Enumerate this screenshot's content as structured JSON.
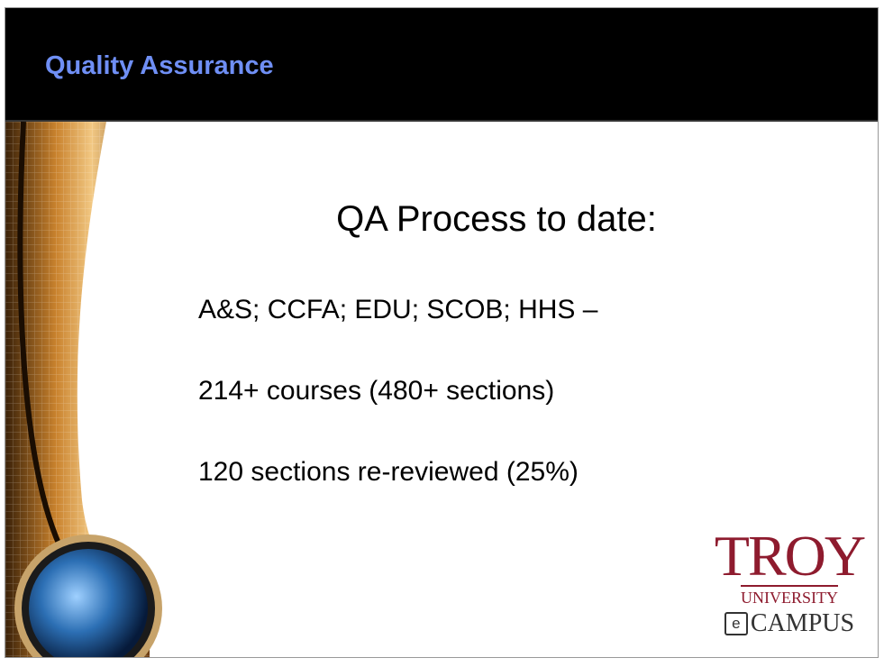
{
  "header": {
    "title": "Quality Assurance"
  },
  "body": {
    "heading": "QA Process to date:",
    "items": [
      "A&S; CCFA; EDU; SCOB; HHS –",
      "214+ courses (480+ sections)",
      "120 sections re-reviewed (25%)"
    ]
  },
  "logo": {
    "wordmark": "TROY",
    "university": "UNIVERSITY",
    "icon": "e",
    "campus": "CAMPUS"
  }
}
